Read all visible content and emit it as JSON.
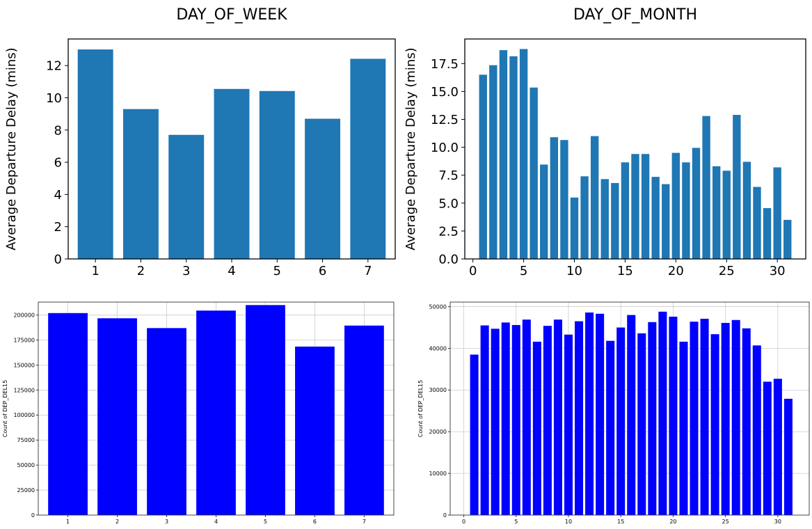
{
  "chart_data": [
    {
      "type": "bar",
      "title": "DAY_OF_WEEK",
      "xlabel": "",
      "ylabel": "Average Departure Delay (mins)",
      "categories": [
        1,
        2,
        3,
        4,
        5,
        6,
        7
      ],
      "values": [
        13.0,
        9.3,
        7.7,
        10.55,
        10.42,
        8.7,
        12.42
      ],
      "xlim": [
        0.4,
        7.6
      ],
      "ylim": [
        0,
        13.65
      ],
      "yticks": [
        0,
        2,
        4,
        6,
        8,
        10,
        12
      ],
      "ytick_labels": [
        "0",
        "2",
        "4",
        "6",
        "8",
        "10",
        "12"
      ],
      "xticks": [
        1,
        2,
        3,
        4,
        5,
        6,
        7
      ],
      "xtick_labels": [
        "1",
        "2",
        "3",
        "4",
        "5",
        "6",
        "7"
      ],
      "grid": false,
      "color": "#1f77b4"
    },
    {
      "type": "bar",
      "title": "DAY_OF_MONTH",
      "xlabel": "",
      "ylabel": "Average Departure Delay (mins)",
      "categories": [
        1,
        2,
        3,
        4,
        5,
        6,
        7,
        8,
        9,
        10,
        11,
        12,
        13,
        14,
        15,
        16,
        17,
        18,
        19,
        20,
        21,
        22,
        23,
        24,
        25,
        26,
        27,
        28,
        29,
        30,
        31
      ],
      "values": [
        16.5,
        17.35,
        18.7,
        18.15,
        18.8,
        15.35,
        8.45,
        10.9,
        10.65,
        5.5,
        7.4,
        11.0,
        7.15,
        6.8,
        8.65,
        9.4,
        9.4,
        7.35,
        6.7,
        9.5,
        8.65,
        9.95,
        12.8,
        8.3,
        7.9,
        12.9,
        8.7,
        6.45,
        4.55,
        8.2,
        3.5
      ],
      "xlim": [
        -0.8,
        32.8
      ],
      "ylim": [
        0,
        19.7
      ],
      "yticks": [
        0,
        2.5,
        5,
        7.5,
        10,
        12.5,
        15,
        17.5
      ],
      "ytick_labels": [
        "0.0",
        "2.5",
        "5.0",
        "7.5",
        "10.0",
        "12.5",
        "15.0",
        "17.5"
      ],
      "xticks": [
        0,
        5,
        10,
        15,
        20,
        25,
        30
      ],
      "xtick_labels": [
        "0",
        "5",
        "10",
        "15",
        "20",
        "25",
        "30"
      ],
      "grid": false,
      "color": "#1f77b4"
    },
    {
      "type": "bar",
      "title": "",
      "xlabel": "",
      "ylabel": "Count of DEP_DEL15",
      "categories": [
        1,
        2,
        3,
        4,
        5,
        6,
        7
      ],
      "values": [
        202000,
        196800,
        187000,
        204500,
        210000,
        168500,
        189500
      ],
      "xlim": [
        0.4,
        7.6
      ],
      "ylim": [
        0,
        213000
      ],
      "yticks": [
        0,
        25000,
        50000,
        75000,
        100000,
        125000,
        150000,
        175000,
        200000
      ],
      "ytick_labels": [
        "0",
        "25000",
        "50000",
        "75000",
        "100000",
        "125000",
        "150000",
        "175000",
        "200000"
      ],
      "xticks": [
        1,
        2,
        3,
        4,
        5,
        6,
        7
      ],
      "xtick_labels": [
        "1",
        "2",
        "3",
        "4",
        "5",
        "6",
        "7"
      ],
      "grid": true,
      "color": "#0000ff"
    },
    {
      "type": "bar",
      "title": "",
      "xlabel": "",
      "ylabel": "Count of DEP_DEL15",
      "categories": [
        1,
        2,
        3,
        4,
        5,
        6,
        7,
        8,
        9,
        10,
        11,
        12,
        13,
        14,
        15,
        16,
        17,
        18,
        19,
        20,
        21,
        22,
        23,
        24,
        25,
        26,
        27,
        28,
        29,
        30,
        31
      ],
      "values": [
        38500,
        45500,
        44700,
        46200,
        45600,
        46900,
        41600,
        45400,
        46900,
        43300,
        46500,
        48600,
        48300,
        41800,
        45000,
        48000,
        43600,
        46300,
        48800,
        47600,
        41600,
        46400,
        47100,
        43400,
        46100,
        46800,
        44800,
        40700,
        32000,
        32700,
        27900
      ],
      "xlim": [
        -1.3,
        33
      ],
      "ylim": [
        0,
        51100
      ],
      "yticks": [
        0,
        10000,
        20000,
        30000,
        40000,
        50000
      ],
      "ytick_labels": [
        "0",
        "10000",
        "20000",
        "30000",
        "40000",
        "50000"
      ],
      "xticks": [
        0,
        5,
        10,
        15,
        20,
        25,
        30
      ],
      "xtick_labels": [
        "0",
        "5",
        "10",
        "15",
        "20",
        "25",
        "30"
      ],
      "grid": true,
      "color": "#0000ff"
    }
  ]
}
